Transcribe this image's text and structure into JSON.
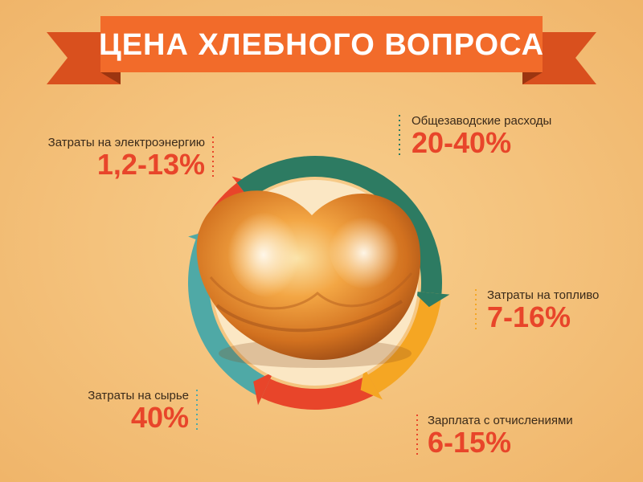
{
  "title": "ЦЕНА ХЛЕБНОГО ВОПРОСА",
  "items": [
    {
      "label": "Затраты на электроэнергию",
      "value": "1,2-13%"
    },
    {
      "label": "Общезаводские расходы",
      "value": "20-40%"
    },
    {
      "label": "Затраты на топливо",
      "value": "7-16%"
    },
    {
      "label": "Зарплата с отчислениями",
      "value": "6-15%"
    },
    {
      "label": "Затраты на сырье",
      "value": "40%"
    }
  ]
}
